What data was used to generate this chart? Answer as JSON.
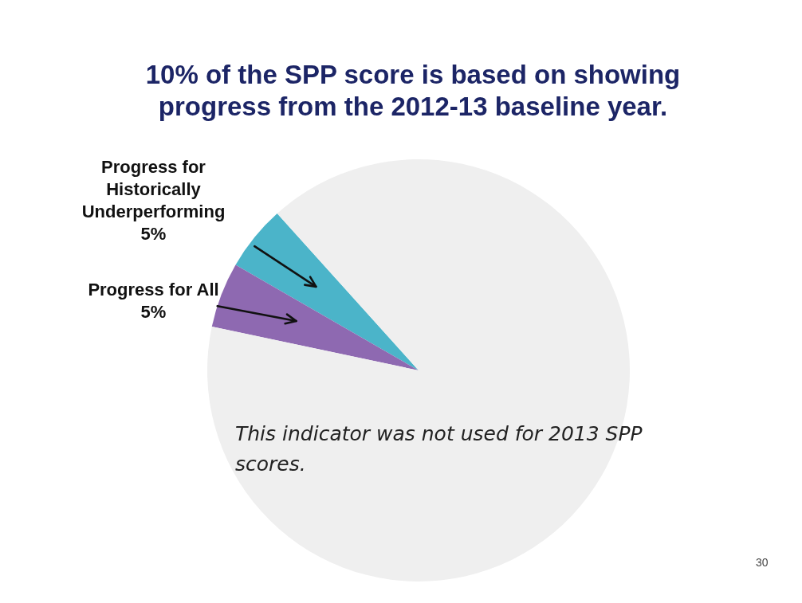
{
  "chart_data": {
    "type": "pie",
    "title": "10% of the SPP score is based on showing progress from the 2012-13 baseline year.",
    "categories": [
      "Progress for Historically Underperforming",
      "Progress for All",
      null
    ],
    "values": [
      5,
      5,
      90
    ],
    "colors": [
      "#4bb4c9",
      "#8e69b1",
      "#efefef"
    ],
    "value_labels": [
      "5%",
      "5%",
      null
    ],
    "annotations": [
      "This indicator was not used for 2013 SPP scores.",
      "30"
    ]
  }
}
